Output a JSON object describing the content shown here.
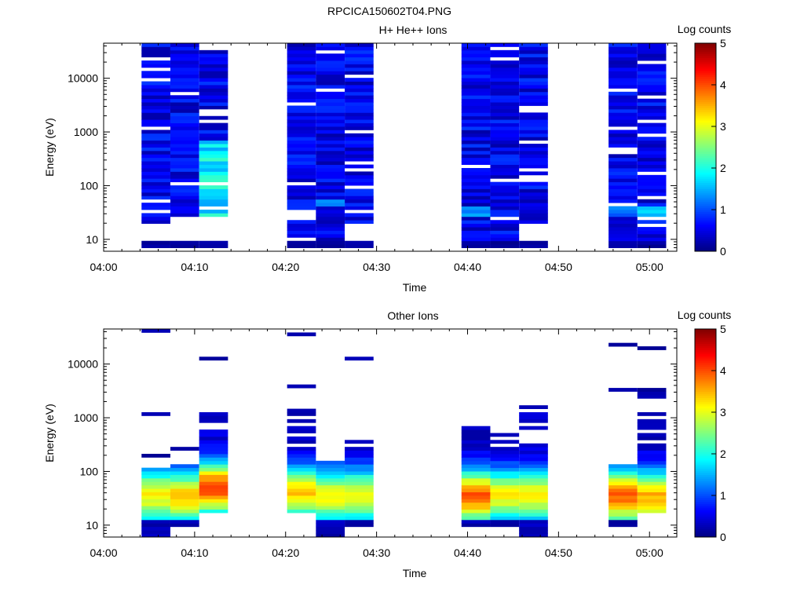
{
  "figure_title": "RPCICA150602T04.PNG",
  "chart_data": [
    {
      "type": "heatmap",
      "title": "H+ He++ Ions",
      "xlabel": "Time",
      "ylabel": "Energy (eV)",
      "x_range": [
        "04:00",
        "05:03"
      ],
      "x_ticks": [
        "04:00",
        "04:10",
        "04:20",
        "04:30",
        "04:40",
        "04:50",
        "05:00"
      ],
      "y_scale": "log",
      "y_range": [
        6,
        45000
      ],
      "y_ticks": [
        "10",
        "100",
        "1000",
        "10000"
      ],
      "colorbar": {
        "label": "Log counts",
        "min": 0,
        "max": 5,
        "ticks": [
          "0",
          "1",
          "2",
          "3",
          "4",
          "5"
        ],
        "colormap": "jet"
      },
      "time_columns": [
        {
          "start": "04:04:10",
          "end": "04:07:20"
        },
        {
          "start": "04:07:20",
          "end": "04:10:30"
        },
        {
          "start": "04:10:30",
          "end": "04:13:40"
        },
        {
          "start": "04:20:10",
          "end": "04:23:20"
        },
        {
          "start": "04:23:20",
          "end": "04:26:30"
        },
        {
          "start": "04:26:30",
          "end": "04:29:40"
        },
        {
          "start": "04:39:20",
          "end": "04:42:30"
        },
        {
          "start": "04:42:30",
          "end": "04:45:40"
        },
        {
          "start": "04:45:40",
          "end": "04:48:50"
        },
        {
          "start": "04:55:30",
          "end": "04:58:40"
        },
        {
          "start": "04:58:40",
          "end": "05:01:50"
        }
      ],
      "low_energy_cutoff_eV": [
        21,
        25,
        26,
        6,
        6,
        20,
        6,
        6,
        17,
        6,
        6
      ],
      "high_count_regions": [
        {
          "column": 2,
          "energy_eV": [
            25,
            700
          ],
          "log_counts": [
            1.3,
            2.2
          ]
        },
        {
          "column": 4,
          "energy_eV": [
            40,
            60
          ],
          "log_counts": [
            1.2,
            1.4
          ]
        },
        {
          "column": 6,
          "energy_eV": [
            25,
            40
          ],
          "log_counts": [
            1.2,
            1.6
          ]
        },
        {
          "column": 9,
          "energy_eV": [
            25,
            40
          ],
          "log_counts": [
            1.0,
            1.5
          ]
        },
        {
          "column": 10,
          "energy_eV": [
            25,
            40
          ],
          "log_counts": [
            1.4,
            1.8
          ]
        }
      ]
    },
    {
      "type": "heatmap",
      "title": "Other Ions",
      "xlabel": "Time",
      "ylabel": "Energy (eV)",
      "x_range": [
        "04:00",
        "05:03"
      ],
      "x_ticks": [
        "04:00",
        "04:10",
        "04:20",
        "04:30",
        "04:40",
        "04:50",
        "05:00"
      ],
      "y_scale": "log",
      "y_range": [
        6,
        45000
      ],
      "y_ticks": [
        "10",
        "100",
        "1000",
        "10000"
      ],
      "colorbar": {
        "label": "Log counts",
        "min": 0,
        "max": 5,
        "ticks": [
          "0",
          "1",
          "2",
          "3",
          "4",
          "5"
        ],
        "colormap": "jet"
      },
      "time_columns": [
        {
          "start": "04:04:10",
          "end": "04:07:20"
        },
        {
          "start": "04:07:20",
          "end": "04:10:30"
        },
        {
          "start": "04:10:30",
          "end": "04:13:40"
        },
        {
          "start": "04:20:10",
          "end": "04:23:20"
        },
        {
          "start": "04:23:20",
          "end": "04:26:30"
        },
        {
          "start": "04:26:30",
          "end": "04:29:40"
        },
        {
          "start": "04:39:20",
          "end": "04:42:30"
        },
        {
          "start": "04:42:30",
          "end": "04:45:40"
        },
        {
          "start": "04:45:40",
          "end": "04:48:50"
        },
        {
          "start": "04:55:30",
          "end": "04:58:40"
        },
        {
          "start": "04:58:40",
          "end": "05:01:50"
        }
      ],
      "column_energy_ranges_eV": [
        [
          6,
          110
        ],
        [
          9,
          130
        ],
        [
          16,
          1400
        ],
        [
          16,
          1300
        ],
        [
          6,
          160
        ],
        [
          9,
          450
        ],
        [
          9,
          700
        ],
        [
          9,
          560
        ],
        [
          6,
          1800
        ],
        [
          9,
          140
        ],
        [
          16,
          1400
        ]
      ],
      "peak_regions": [
        {
          "column": 2,
          "energy_eV": [
            40,
            60
          ],
          "log_counts": 3.8
        },
        {
          "column": 1,
          "energy_eV": [
            25,
            45
          ],
          "log_counts": 3.1
        },
        {
          "column": 3,
          "energy_eV": [
            30,
            55
          ],
          "log_counts": 3.0
        },
        {
          "column": 6,
          "energy_eV": [
            30,
            40
          ],
          "log_counts": 3.6
        },
        {
          "column": 9,
          "energy_eV": [
            30,
            40
          ],
          "log_counts": 3.6
        },
        {
          "column": 10,
          "energy_eV": [
            25,
            45
          ],
          "log_counts": 3.2
        }
      ]
    }
  ]
}
